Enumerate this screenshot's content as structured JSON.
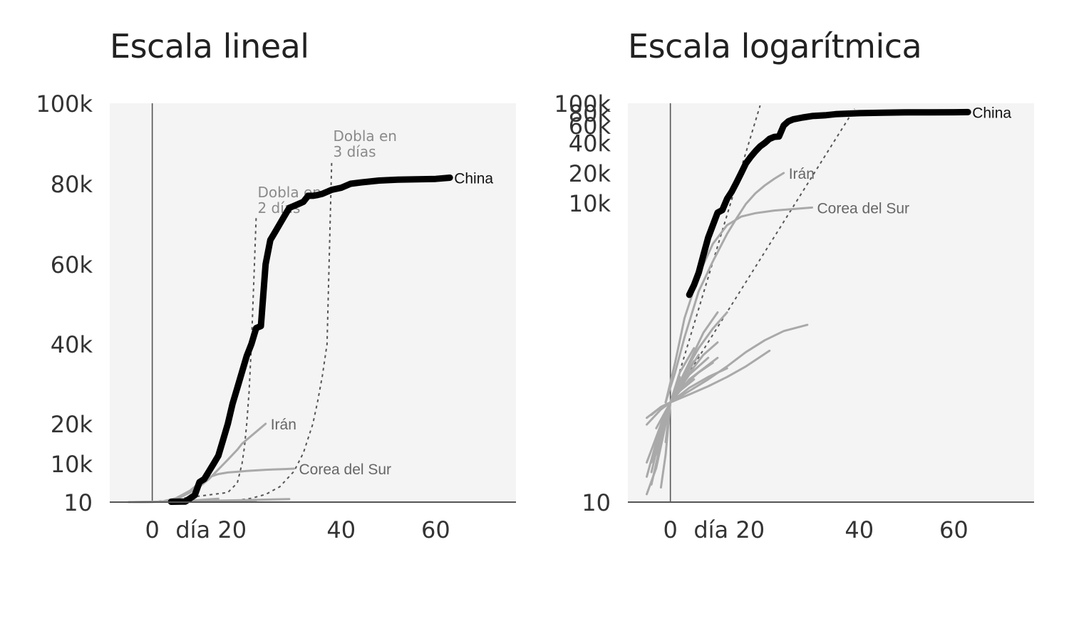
{
  "colors": {
    "background": "#f4f4f4",
    "china": "#000000",
    "other": "#a9a9a9",
    "axis": "#555555",
    "guide": "#555555"
  },
  "chart_data": [
    {
      "type": "line",
      "title": "Escala lineal",
      "scale": "linear",
      "x_ticks": [
        "0",
        "día 20",
        "40",
        "60"
      ],
      "x_tick_values": [
        0,
        20,
        40,
        60
      ],
      "y_ticks": [
        "10",
        "10k",
        "20k",
        "40k",
        "60k",
        "80k",
        "100k"
      ],
      "y_tick_values": [
        10,
        10000,
        20000,
        40000,
        60000,
        80000,
        100000
      ],
      "xlim": [
        -9,
        77
      ],
      "ylim": [
        10,
        100000
      ],
      "series": [
        {
          "name": "China",
          "highlight": true,
          "x": [
            4,
            7,
            9,
            10,
            11,
            12,
            13,
            14,
            15,
            16,
            17,
            18,
            19,
            20,
            21,
            22,
            23,
            24,
            25,
            26,
            27,
            28,
            29,
            30,
            31,
            32,
            33,
            34,
            35,
            36,
            38,
            40,
            42,
            44,
            48,
            52,
            56,
            60,
            63
          ],
          "y": [
            100,
            150,
            1800,
            5200,
            6000,
            8000,
            10000,
            12000,
            16000,
            20000,
            25000,
            29000,
            33000,
            37000,
            40000,
            44000,
            44500,
            60000,
            66000,
            68000,
            70000,
            72000,
            74000,
            74500,
            75000,
            75500,
            77000,
            77000,
            77200,
            77500,
            78500,
            79000,
            80000,
            80300,
            80800,
            81000,
            81100,
            81200,
            81500
          ]
        },
        {
          "name": "Irán",
          "x": [
            2,
            5,
            8,
            10,
            12,
            14,
            16,
            18,
            19,
            20,
            22,
            24
          ],
          "y": [
            100,
            700,
            2500,
            4000,
            6000,
            8500,
            11000,
            13500,
            15000,
            16000,
            18000,
            20000
          ]
        },
        {
          "name": "Corea del Sur",
          "x": [
            2,
            5,
            8,
            10,
            12,
            14,
            16,
            18,
            20,
            24,
            28,
            30
          ],
          "y": [
            100,
            1000,
            3000,
            5000,
            6500,
            7300,
            7700,
            7900,
            8100,
            8400,
            8600,
            8700
          ]
        },
        {
          "name": "",
          "x": [
            -5,
            0,
            10,
            20,
            29
          ],
          "y": [
            10,
            100,
            300,
            550,
            800
          ]
        },
        {
          "name": "",
          "x": [
            -4,
            0,
            10,
            18,
            22
          ],
          "y": [
            10,
            80,
            250,
            400,
            500
          ]
        },
        {
          "name": "",
          "x": [
            -3,
            0,
            8,
            14
          ],
          "y": [
            10,
            60,
            400,
            900
          ]
        }
      ],
      "guides": [
        {
          "label_lines": [
            "Dobla en",
            "2 días"
          ],
          "x": [
            0,
            16,
            18,
            19,
            19.5,
            20,
            20.5,
            21,
            21.5,
            22
          ],
          "y": [
            10,
            2500,
            5000,
            10000,
            14000,
            20000,
            28000,
            40000,
            56000,
            72000
          ]
        },
        {
          "label_lines": [
            "Dobla en",
            "3 días"
          ],
          "x": [
            0,
            18,
            21,
            24,
            27,
            30,
            32,
            34,
            35,
            36,
            37,
            38
          ],
          "y": [
            10,
            500,
            1000,
            2000,
            4000,
            8000,
            12700,
            20000,
            25500,
            32000,
            40000,
            86000
          ]
        }
      ]
    },
    {
      "type": "line",
      "title": "Escala logarítmica",
      "scale": "log",
      "x_ticks": [
        "0",
        "día 20",
        "40",
        "60"
      ],
      "x_tick_values": [
        0,
        20,
        40,
        60
      ],
      "y_ticks": [
        "10",
        "10k",
        "20k",
        "40k",
        "60k",
        "80k",
        "100k"
      ],
      "y_tick_values": [
        10,
        10000,
        20000,
        40000,
        60000,
        80000,
        100000
      ],
      "xlim": [
        -9,
        77
      ],
      "ylim": [
        10,
        100000
      ],
      "series": [
        {
          "name": "China",
          "highlight": true,
          "x": [
            4,
            5,
            6,
            7,
            8,
            9,
            10,
            11,
            12,
            13,
            14,
            15,
            16,
            17,
            18,
            19,
            20,
            21,
            22,
            23,
            24,
            25,
            26,
            28,
            30,
            33,
            35,
            40,
            45,
            50,
            55,
            60,
            63
          ],
          "y": [
            1200,
            1500,
            2000,
            3000,
            4500,
            6000,
            8000,
            8500,
            11000,
            13000,
            16000,
            20000,
            25000,
            29000,
            33000,
            37000,
            40000,
            44000,
            46000,
            46500,
            60000,
            66000,
            69000,
            72000,
            74500,
            76000,
            77800,
            79500,
            80500,
            81000,
            81200,
            81300,
            81500
          ]
        },
        {
          "name": "Irán",
          "x": [
            -1,
            1,
            3,
            6,
            9,
            12,
            14,
            16,
            18,
            20,
            22,
            24
          ],
          "y": [
            100,
            200,
            450,
            1300,
            2600,
            4900,
            7000,
            9800,
            12500,
            15000,
            17500,
            20000
          ]
        },
        {
          "name": "Corea del Sur",
          "x": [
            -1,
            1,
            3,
            6,
            9,
            12,
            15,
            18,
            22,
            26,
            30
          ],
          "y": [
            100,
            250,
            700,
            1900,
            3900,
            6000,
            7300,
            7900,
            8400,
            8700,
            9000
          ]
        },
        {
          "name": "",
          "x": [
            -2,
            0,
            3,
            6,
            9,
            12
          ],
          "y": [
            60,
            100,
            200,
            350,
            550,
            800
          ]
        },
        {
          "name": "",
          "x": [
            -3,
            0,
            4,
            8,
            12,
            16,
            20,
            24,
            29
          ],
          "y": [
            55,
            100,
            130,
            170,
            230,
            320,
            420,
            520,
            600
          ]
        },
        {
          "name": "",
          "x": [
            -2,
            0,
            4,
            8,
            12,
            16,
            21
          ],
          "y": [
            45,
            100,
            120,
            145,
            180,
            230,
            330
          ]
        },
        {
          "name": "",
          "x": [
            -1,
            0,
            3,
            7,
            10
          ],
          "y": [
            40,
            100,
            200,
            500,
            800
          ]
        },
        {
          "name": "",
          "x": [
            -3,
            -1,
            0,
            2,
            5
          ],
          "y": [
            30,
            65,
            100,
            200,
            350
          ]
        },
        {
          "name": "",
          "x": [
            -4,
            -1,
            0,
            3,
            7,
            10
          ],
          "y": [
            25,
            70,
            100,
            170,
            300,
            400
          ]
        },
        {
          "name": "",
          "x": [
            -5,
            -2,
            0,
            4,
            8
          ],
          "y": [
            25,
            60,
            100,
            190,
            280
          ]
        },
        {
          "name": "",
          "x": [
            -4,
            -2,
            0,
            3,
            6,
            9
          ],
          "y": [
            20,
            50,
            100,
            150,
            200,
            250
          ]
        },
        {
          "name": "",
          "x": [
            -5,
            -3,
            0,
            2,
            5
          ],
          "y": [
            18,
            40,
            100,
            160,
            260
          ]
        },
        {
          "name": "",
          "x": [
            -4,
            -2,
            0,
            3,
            6
          ],
          "y": [
            15,
            40,
            100,
            180,
            300
          ]
        },
        {
          "name": "",
          "x": [
            -5,
            -2,
            0,
            4,
            8,
            12
          ],
          "y": [
            60,
            85,
            100,
            140,
            180,
            220
          ]
        },
        {
          "name": "",
          "x": [
            -4,
            -2,
            0,
            2,
            5
          ],
          "y": [
            75,
            90,
            100,
            130,
            170
          ]
        },
        {
          "name": "",
          "x": [
            -5,
            -3,
            0,
            2
          ],
          "y": [
            12,
            22,
            100,
            180
          ]
        },
        {
          "name": "",
          "x": [
            -2,
            -1,
            0
          ],
          "y": [
            14,
            30,
            100
          ]
        },
        {
          "name": "",
          "x": [
            -5,
            -2,
            0,
            4,
            10
          ],
          "y": [
            70,
            90,
            100,
            170,
            280
          ]
        }
      ],
      "guides": [
        {
          "label_lines": [],
          "x": [
            0,
            19
          ],
          "y": [
            100,
            95000
          ]
        },
        {
          "label_lines": [],
          "x": [
            0,
            39
          ],
          "y": [
            100,
            88000
          ]
        }
      ]
    }
  ]
}
